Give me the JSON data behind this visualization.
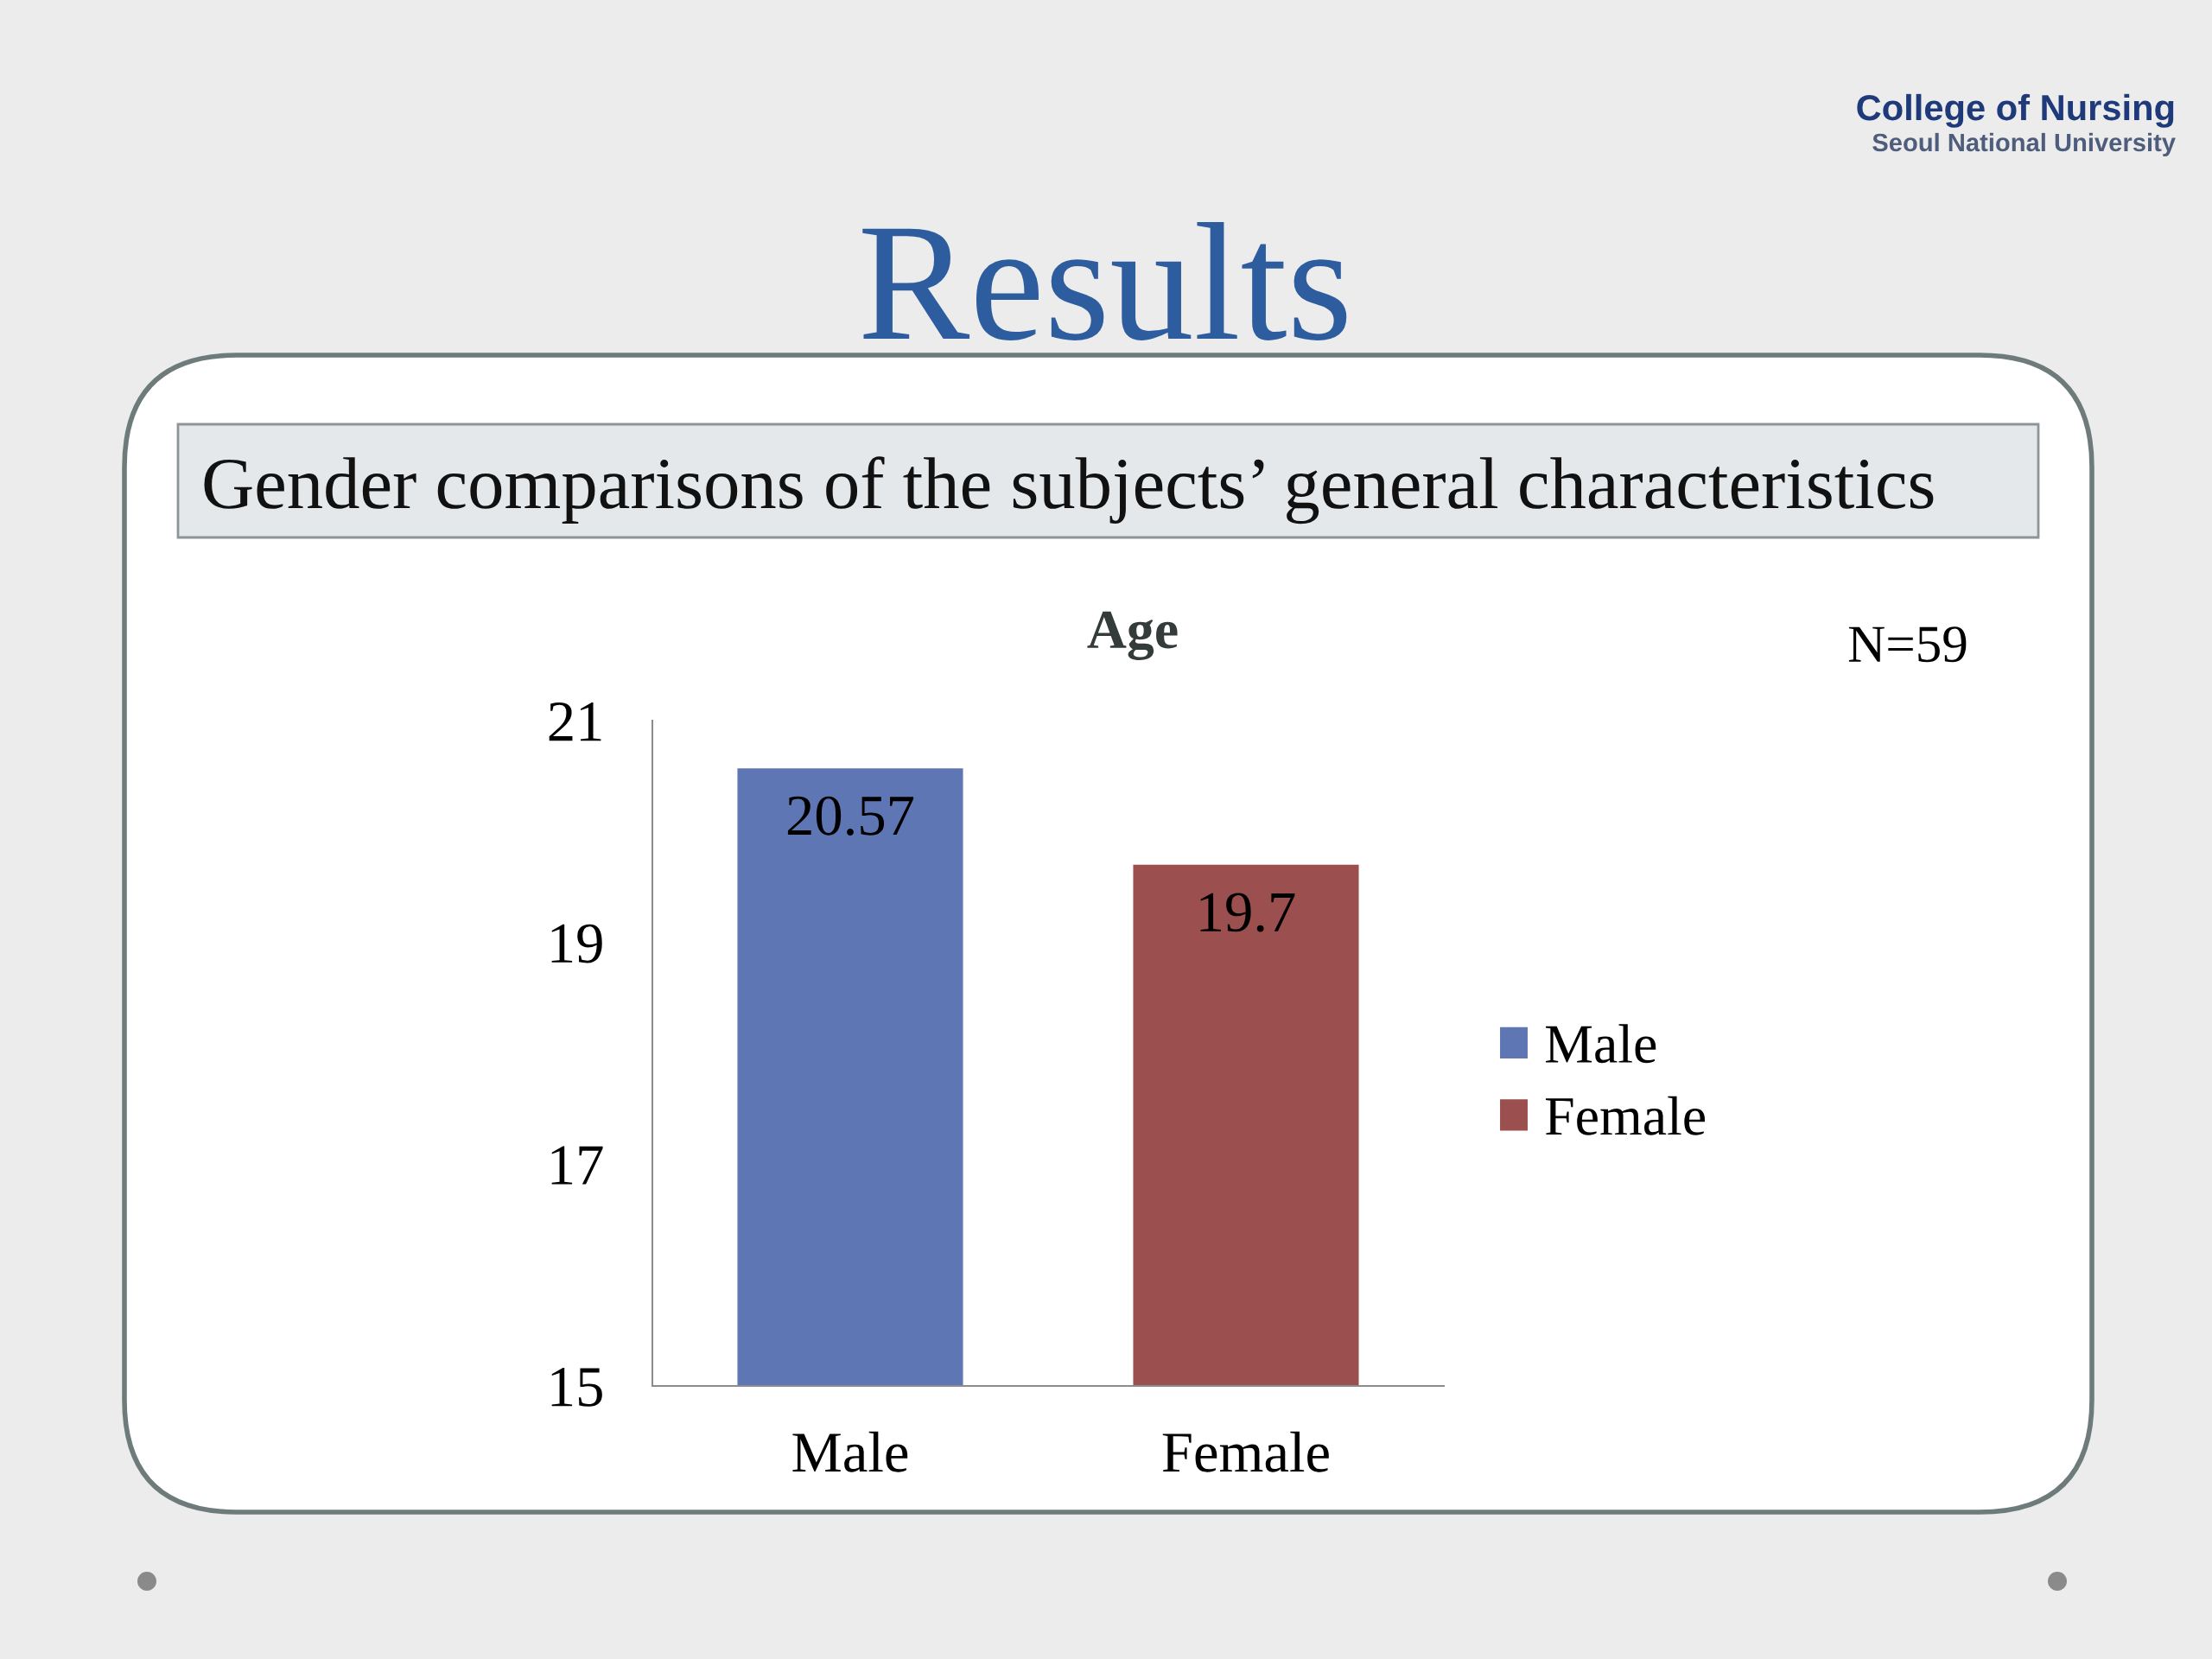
{
  "chart_data": {
    "type": "bar",
    "title": "Age",
    "categories": [
      "Male",
      "Female"
    ],
    "series": [
      {
        "name": "Male",
        "color": "#5f76b4",
        "values": [
          20.57,
          null
        ]
      },
      {
        "name": "Female",
        "color": "#9c4f4f",
        "values": [
          null,
          19.7
        ]
      }
    ],
    "ylim": [
      15,
      21
    ],
    "yticks": [
      15,
      17,
      19,
      21
    ],
    "data_labels": true,
    "legend": "right",
    "annotations": [
      "Results",
      "Gender comparisons of the subjects’ general characteristics",
      "N=59",
      "College of Nursing",
      "Seoul National University"
    ]
  }
}
